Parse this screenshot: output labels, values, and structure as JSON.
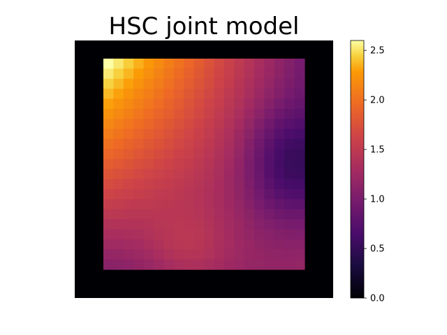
{
  "chart_data": {
    "type": "heatmap",
    "title": "HSC joint model",
    "colormap": "inferno",
    "grid": false,
    "vmin": 0.0,
    "vmax": 2.6,
    "border_value": 0.0,
    "colorbar": {
      "location": "right",
      "ticks": [
        0.0,
        0.5,
        1.0,
        1.5,
        2.0,
        2.5
      ],
      "tick_labels": [
        "0.0",
        "0.5",
        "1.0",
        "1.5",
        "2.0",
        "2.5"
      ]
    },
    "model": {
      "description_free": true,
      "rows": 21,
      "cols": 20,
      "corner_values": {
        "top_left": 2.6,
        "top_right": 1.0,
        "bottom_left": 1.1,
        "bottom_right": 1.2
      },
      "min_region": {
        "row_frac": 0.5,
        "col_frac": 0.95,
        "value": 0.55
      },
      "bottom_peak": {
        "row_frac": 0.93,
        "col_frac": 0.42,
        "value": 1.35
      }
    }
  }
}
